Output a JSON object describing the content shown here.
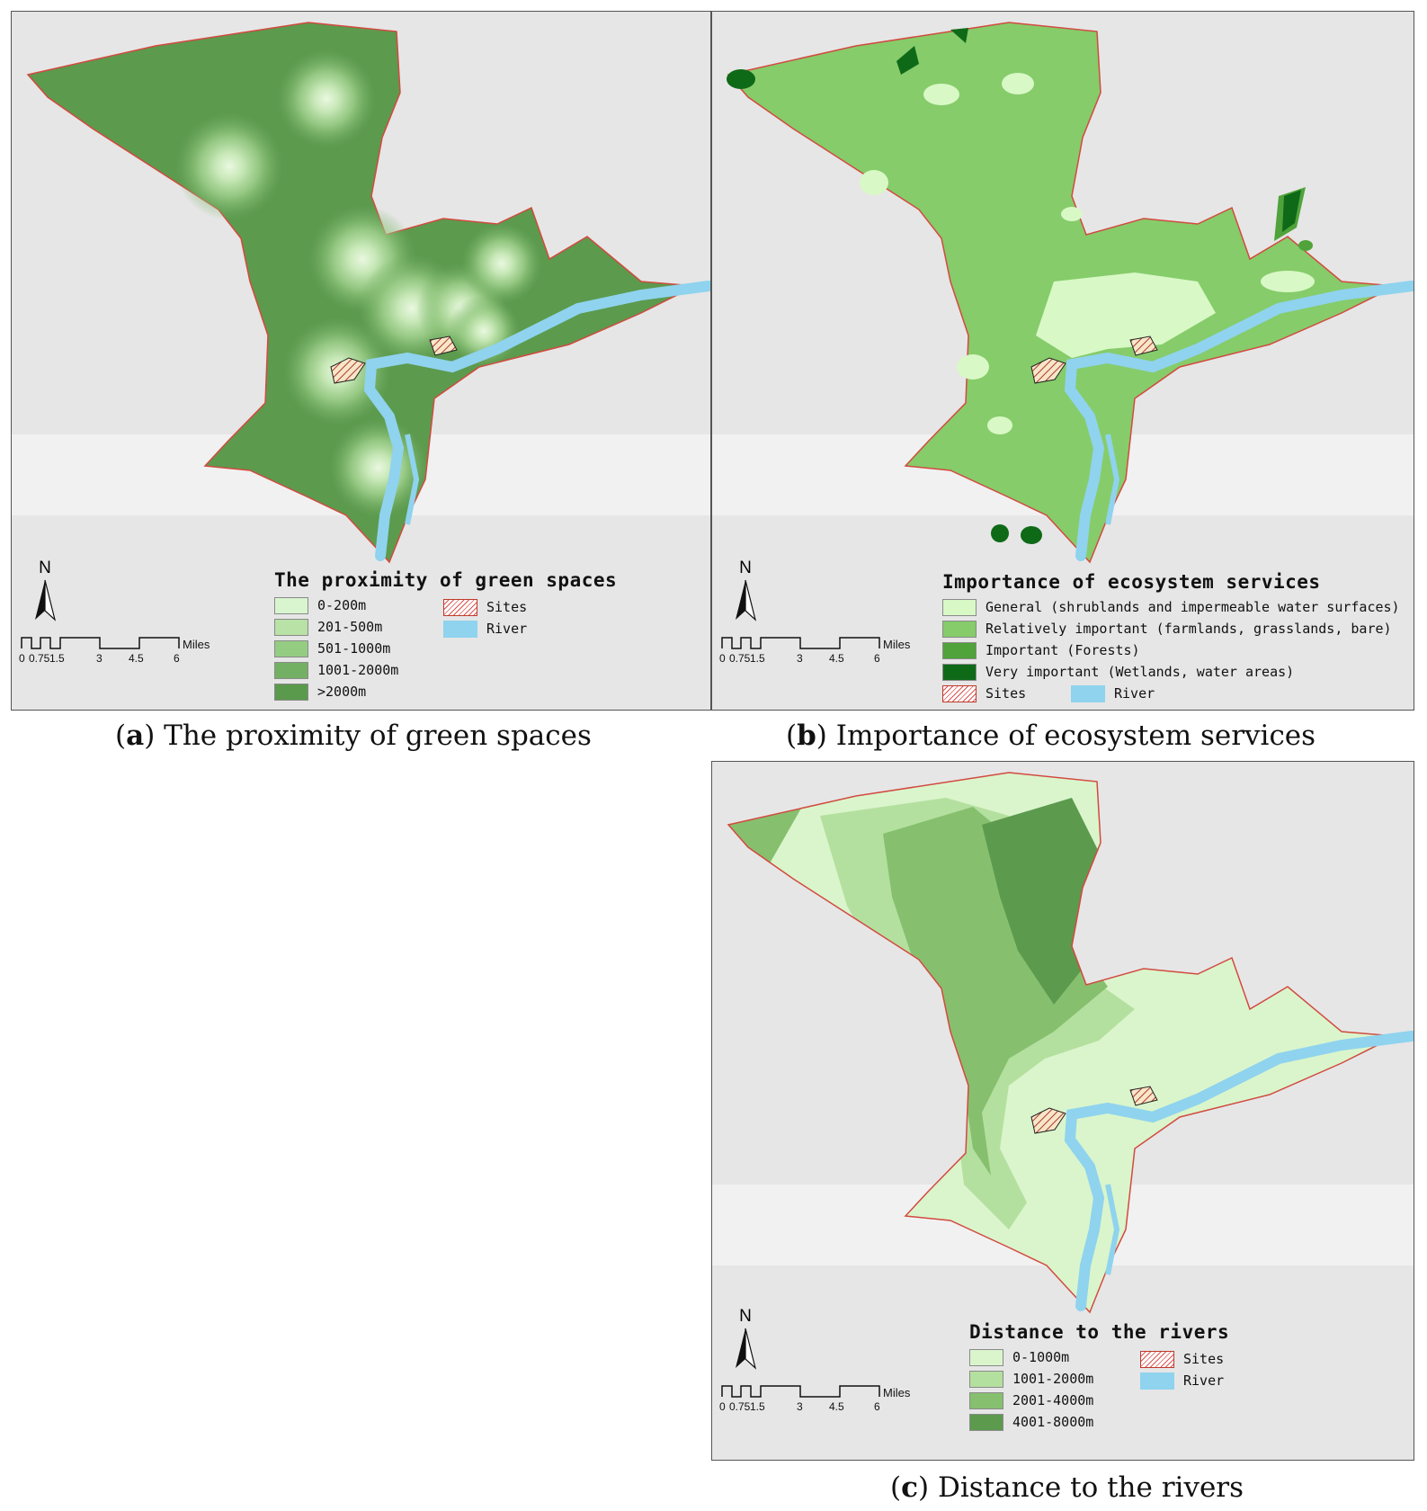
{
  "panels": [
    {
      "id": "a",
      "legend_title": "The proximity of green spaces",
      "classes": [
        {
          "label": "0-200m",
          "color": "#d9f5cf"
        },
        {
          "label": "201-500m",
          "color": "#b8e2a6"
        },
        {
          "label": "501-1000m",
          "color": "#94cd82"
        },
        {
          "label": "1001-2000m",
          "color": "#74b064"
        },
        {
          "label": ">2000m",
          "color": "#5a9a4d"
        }
      ],
      "caption_letter": "a",
      "caption_text": " The proximity of green spaces"
    },
    {
      "id": "b",
      "legend_title": "Importance of ecosystem services",
      "classes": [
        {
          "label": "General (shrublands and impermeable water surfaces)",
          "color": "#d8f8c6"
        },
        {
          "label": "Relatively important (farmlands, grasslands, bare)",
          "color": "#86cc6a"
        },
        {
          "label": "Important (Forests)",
          "color": "#4fa33a"
        },
        {
          "label": "Very important (Wetlands, water areas)",
          "color": "#0f6a18"
        }
      ],
      "caption_letter": "b",
      "caption_text": " Importance of ecosystem services"
    },
    {
      "id": "c",
      "legend_title": "Distance to the rivers",
      "classes": [
        {
          "label": "0-1000m",
          "color": "#daf5cc"
        },
        {
          "label": "1001-2000m",
          "color": "#b4e09f"
        },
        {
          "label": "2001-4000m",
          "color": "#86c06f"
        },
        {
          "label": "4001-8000m",
          "color": "#5c9a4e"
        }
      ],
      "caption_letter": "c",
      "caption_text": " Distance to the rivers"
    }
  ],
  "common": {
    "sites_label": "Sites",
    "river_label": "River",
    "river_color": "#8fd3ee",
    "north_label": "N",
    "scale_unit": "Miles",
    "scale_ticks": [
      "0",
      "0.75",
      "1.5",
      "3",
      "4.5",
      "6"
    ]
  }
}
